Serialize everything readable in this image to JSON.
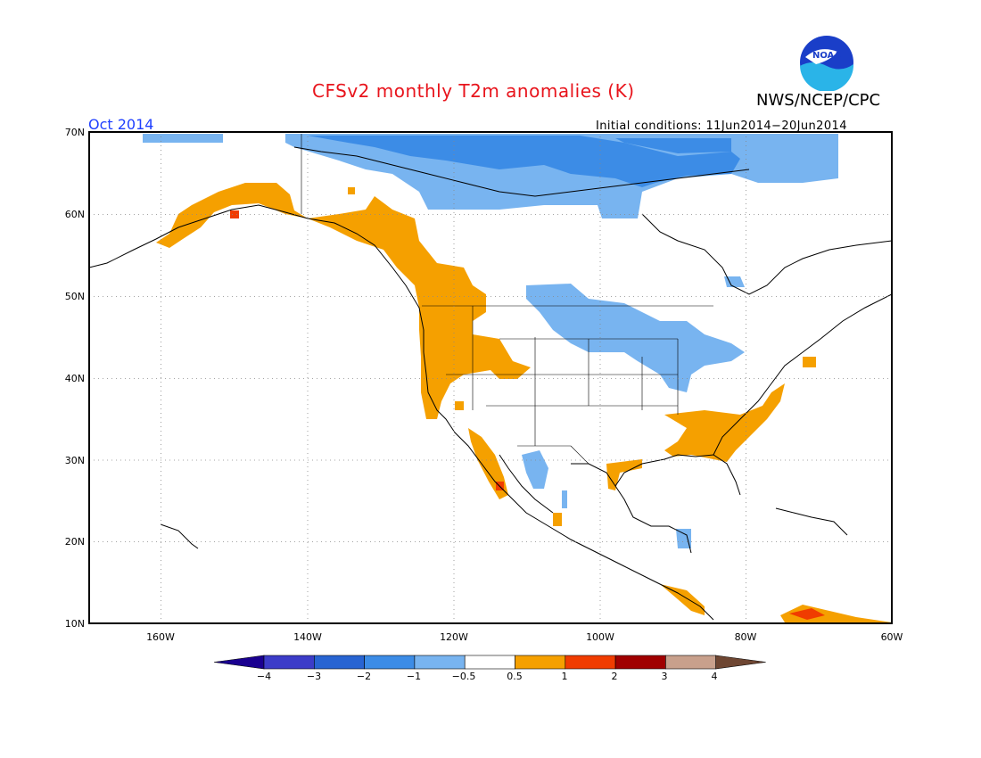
{
  "title": "CFSv2 monthly T2m anomalies (K)",
  "org": "NWS/NCEP/CPC",
  "logo_text": "NOAA",
  "month": "Oct 2014",
  "initial_conditions": "Initial conditions: 11Jun2014−20Jun2014",
  "lat_labels": [
    "70N",
    "60N",
    "50N",
    "40N",
    "30N",
    "20N",
    "10N"
  ],
  "lon_labels": [
    "160W",
    "140W",
    "120W",
    "100W",
    "80W",
    "60W"
  ],
  "colorbar": {
    "labels": [
      "−4",
      "−3",
      "−2",
      "−1",
      "−0.5",
      "0.5",
      "1",
      "2",
      "3",
      "4"
    ],
    "colors": [
      "#1a0090",
      "#3c3cc8",
      "#2864d2",
      "#3c8ce6",
      "#78b4f0",
      "#ffffff",
      "#f5a000",
      "#f03c00",
      "#a00000",
      "#c8a08c",
      "#6e4632"
    ]
  },
  "colors": {
    "title": "#e8141c",
    "month": "#2040ff",
    "map_cold": "#78b4f0",
    "map_cold2": "#3c8ce6",
    "map_warm": "#f5a000",
    "map_hot": "#f03c00"
  }
}
